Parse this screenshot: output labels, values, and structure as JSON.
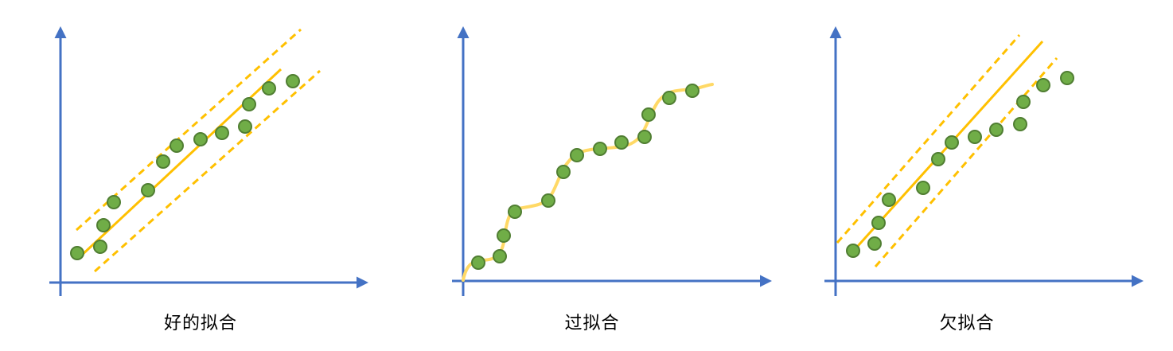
{
  "colors": {
    "axis": "#4472C4",
    "fit_line": "#FFC000",
    "curve": "#FFD966",
    "point_fill": "#70AD47",
    "point_stroke": "#507E32"
  },
  "panels": [
    {
      "key": "good",
      "label": "好的拟合",
      "points": [
        [
          97,
          318
        ],
        [
          126,
          310
        ],
        [
          130,
          283
        ],
        [
          143,
          254
        ],
        [
          186,
          239
        ],
        [
          205,
          203
        ],
        [
          222,
          183
        ],
        [
          252,
          175
        ],
        [
          279,
          167
        ],
        [
          308,
          159
        ],
        [
          313,
          131
        ],
        [
          338,
          111
        ],
        [
          368,
          102
        ]
      ],
      "fit": {
        "type": "band",
        "center": [
          [
            99,
            324
          ],
          [
            353,
            87
          ]
        ],
        "upper": [
          [
            96,
            289
          ],
          [
            378,
            37
          ]
        ],
        "lower": [
          [
            119,
            341
          ],
          [
            402,
            89
          ]
        ]
      }
    },
    {
      "key": "overfit",
      "label": "过拟合",
      "points": [
        [
          601,
          330
        ],
        [
          628,
          322
        ],
        [
          633,
          296
        ],
        [
          647,
          266
        ],
        [
          689,
          252
        ],
        [
          708,
          216
        ],
        [
          725,
          195
        ],
        [
          754,
          187
        ],
        [
          781,
          179
        ],
        [
          810,
          172
        ],
        [
          815,
          144
        ],
        [
          841,
          123
        ],
        [
          870,
          114
        ]
      ],
      "fit": {
        "type": "curve"
      }
    },
    {
      "key": "underfit",
      "label": "欠拟合",
      "points": [
        [
          1072,
          315
        ],
        [
          1099,
          306
        ],
        [
          1104,
          280
        ],
        [
          1117,
          251
        ],
        [
          1160,
          236
        ],
        [
          1179,
          200
        ],
        [
          1196,
          179
        ],
        [
          1225,
          172
        ],
        [
          1252,
          163
        ],
        [
          1282,
          156
        ],
        [
          1286,
          128
        ],
        [
          1311,
          107
        ],
        [
          1341,
          98
        ]
      ],
      "fit": {
        "type": "band",
        "center": [
          [
            1069,
            319
          ],
          [
            1310,
            52
          ]
        ],
        "upper": [
          [
            1052,
            305
          ],
          [
            1281,
            44
          ]
        ],
        "lower": [
          [
            1100,
            335
          ],
          [
            1328,
            73
          ]
        ]
      }
    }
  ]
}
